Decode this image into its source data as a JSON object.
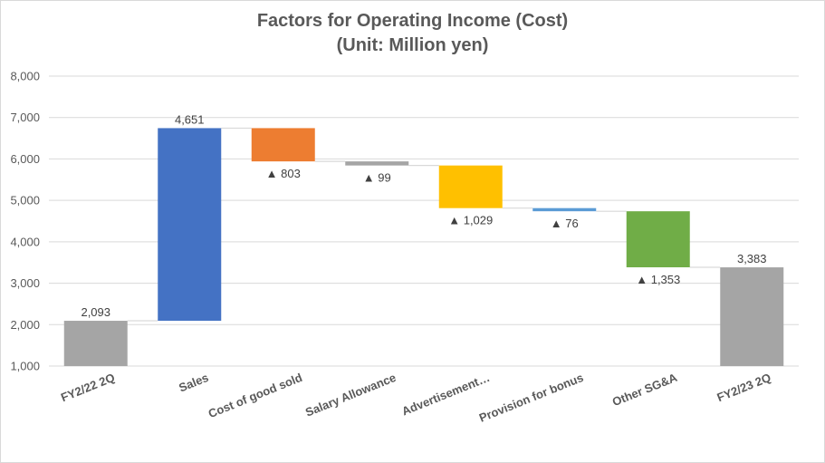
{
  "chart_data": {
    "type": "bar",
    "subtype": "waterfall",
    "title": "Factors for Operating Income (Cost)",
    "subtitle": "(Unit: Million yen)",
    "ylim": [
      1000,
      8000
    ],
    "yticks": [
      1000,
      2000,
      3000,
      4000,
      5000,
      6000,
      7000,
      8000
    ],
    "ytick_labels": [
      "1,000",
      "2,000",
      "3,000",
      "4,000",
      "5,000",
      "6,000",
      "7,000",
      "8,000"
    ],
    "grid": true,
    "categories": [
      "FY2/22 2Q",
      "Sales",
      "Cost of good sold",
      "Salary Allowance",
      "Advertisement…",
      "Provision for bonus",
      "Other SG&A",
      "FY2/23 2Q"
    ],
    "values": [
      2093,
      4651,
      -803,
      -99,
      -1029,
      -76,
      -1353,
      3383
    ],
    "bar_kind": [
      "total",
      "delta",
      "delta",
      "delta",
      "delta",
      "delta",
      "delta",
      "total"
    ],
    "data_labels": [
      "2,093",
      "4,651",
      "▲ 803",
      "▲ 99",
      "▲ 1,029",
      "▲ 76",
      "▲ 1,353",
      "3,383"
    ],
    "colors": [
      "#a5a5a5",
      "#4472c4",
      "#ed7d31",
      "#a5a5a5",
      "#ffc000",
      "#5b9bd5",
      "#70ad47",
      "#a5a5a5"
    ]
  }
}
